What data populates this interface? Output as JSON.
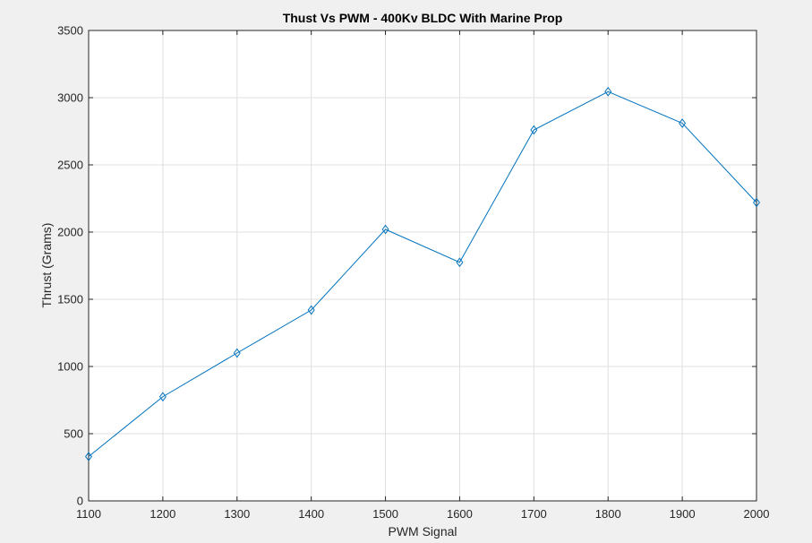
{
  "chart_data": {
    "type": "line",
    "title": "Thust Vs PWM - 400Kv BLDC With Marine Prop",
    "xlabel": "PWM Signal",
    "ylabel": "Thrust (Grams)",
    "xlim": [
      1100,
      2000
    ],
    "ylim": [
      0,
      3500
    ],
    "xticks": [
      "1100",
      "1200",
      "1300",
      "1400",
      "1500",
      "1600",
      "1700",
      "1800",
      "1900",
      "2000"
    ],
    "yticks": [
      "0",
      "500",
      "1000",
      "1500",
      "2000",
      "2500",
      "3000",
      "3500"
    ],
    "grid": true,
    "marker": "diamond",
    "series": [
      {
        "x": [
          1100,
          1200,
          1300,
          1400,
          1500,
          1600,
          1700,
          1800,
          1900,
          2000
        ],
        "values": [
          330,
          775,
          1100,
          1420,
          2020,
          1775,
          2760,
          3045,
          2810,
          2220
        ],
        "color": "#0072bd"
      }
    ]
  },
  "colors": {
    "figure_background": "#f0f0f0",
    "axes_background": "#ffffff",
    "grid": "#dfdfdf",
    "axis_line": "#262626",
    "series": "#0072bd"
  }
}
